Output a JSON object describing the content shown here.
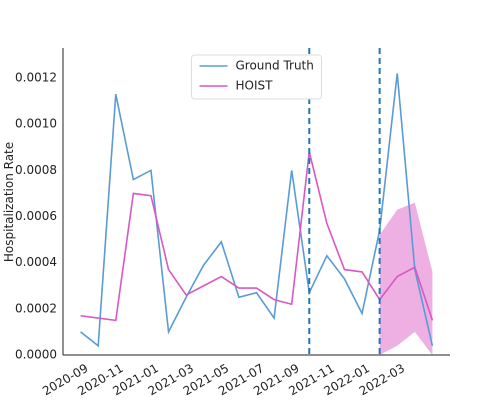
{
  "chart_data": {
    "type": "line",
    "ylabel": "Hospitalization Rate",
    "x": [
      "2020-09",
      "2020-10",
      "2020-11",
      "2020-12",
      "2021-01",
      "2021-02",
      "2021-03",
      "2021-04",
      "2021-05",
      "2021-06",
      "2021-07",
      "2021-08",
      "2021-09",
      "2021-10",
      "2021-11",
      "2021-12",
      "2022-01",
      "2022-02",
      "2022-03",
      "2022-04",
      "2022-05"
    ],
    "series": [
      {
        "name": "Ground Truth",
        "color": "#5b9bd5",
        "values": [
          0.0001,
          4e-05,
          0.00113,
          0.00076,
          0.0008,
          0.0001,
          0.00025,
          0.00039,
          0.00049,
          0.00025,
          0.00027,
          0.00016,
          0.0008,
          0.00027,
          0.00043,
          0.00033,
          0.00018,
          0.00054,
          0.00122,
          0.00037,
          4e-05
        ]
      },
      {
        "name": "HOIST",
        "color": "#d957c6",
        "values": [
          0.00017,
          0.00016,
          0.00015,
          0.0007,
          0.00069,
          0.00037,
          0.00026,
          0.0003,
          0.00034,
          0.00029,
          0.00029,
          0.00024,
          0.00022,
          0.00088,
          0.00057,
          0.00037,
          0.00036,
          0.00024,
          0.00034,
          0.00038,
          0.00015
        ]
      }
    ],
    "band": {
      "x": [
        "2022-02",
        "2022-03",
        "2022-04",
        "2022-05"
      ],
      "lower": [
        0,
        4e-05,
        0.0001,
        0
      ],
      "upper": [
        0.00052,
        0.00063,
        0.00066,
        0.00036
      ],
      "color": "#eeb0e2"
    },
    "vlines": {
      "x": [
        "2021-10",
        "2022-02"
      ],
      "color": "#1f77b4"
    },
    "xlim": [
      "2020-08",
      "2022-06"
    ],
    "xticks": [
      "2020-09",
      "2020-11",
      "2021-01",
      "2021-03",
      "2021-05",
      "2021-07",
      "2021-09",
      "2021-11",
      "2022-01",
      "2022-03"
    ],
    "ylim": [
      0,
      0.00133
    ],
    "yticks": [
      {
        "value": 0,
        "label": "0.0000"
      },
      {
        "value": 0.0002,
        "label": "0.0002"
      },
      {
        "value": 0.0004,
        "label": "0.0004"
      },
      {
        "value": 0.0006,
        "label": "0.0006"
      },
      {
        "value": 0.0008,
        "label": "0.0008"
      },
      {
        "value": 0.001,
        "label": "0.0010"
      },
      {
        "value": 0.0012,
        "label": "0.0012"
      }
    ],
    "legend": "upper center"
  }
}
